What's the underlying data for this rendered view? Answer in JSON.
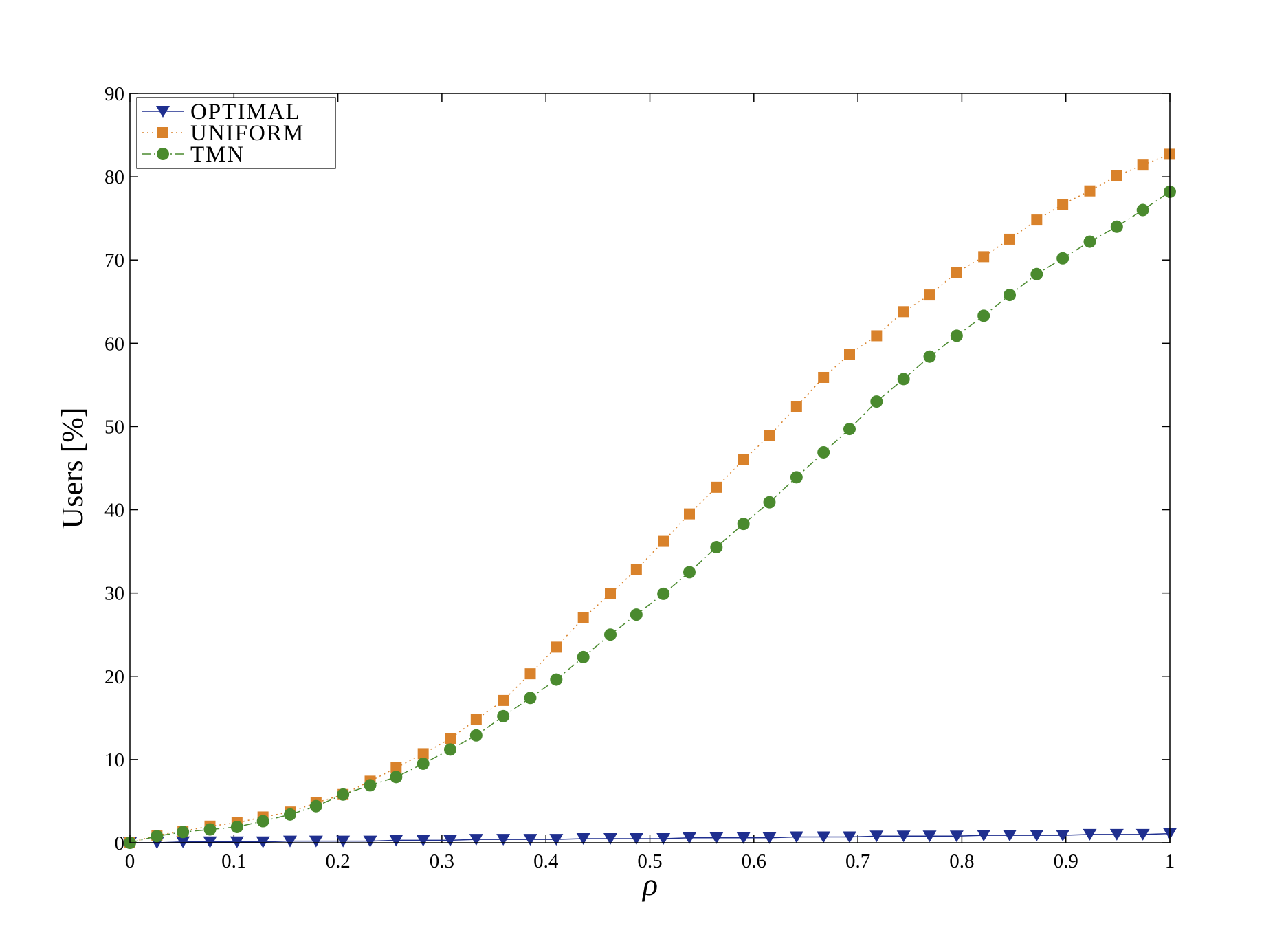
{
  "chart_data": {
    "type": "line",
    "x_label": "ρ",
    "y_label": "Users [%]",
    "x": [
      0,
      0.026,
      0.051,
      0.077,
      0.103,
      0.128,
      0.154,
      0.179,
      0.205,
      0.231,
      0.256,
      0.282,
      0.308,
      0.333,
      0.359,
      0.385,
      0.41,
      0.436,
      0.462,
      0.487,
      0.513,
      0.538,
      0.564,
      0.59,
      0.615,
      0.641,
      0.667,
      0.692,
      0.718,
      0.744,
      0.769,
      0.795,
      0.821,
      0.846,
      0.872,
      0.897,
      0.923,
      0.949,
      0.974,
      1
    ],
    "series": [
      {
        "name": "OPTIMAL",
        "color": "#1f2f8f",
        "marker": "triangle-down",
        "linestyle": "solid",
        "values": [
          0,
          0,
          0.1,
          0.1,
          0.1,
          0.1,
          0.2,
          0.2,
          0.2,
          0.2,
          0.3,
          0.3,
          0.3,
          0.4,
          0.4,
          0.4,
          0.4,
          0.5,
          0.5,
          0.5,
          0.5,
          0.6,
          0.6,
          0.6,
          0.6,
          0.7,
          0.7,
          0.7,
          0.8,
          0.8,
          0.8,
          0.8,
          0.9,
          0.9,
          0.9,
          0.9,
          1.0,
          1.0,
          1.0,
          1.1
        ]
      },
      {
        "name": "UNIFORM",
        "color": "#d9822b",
        "marker": "square",
        "linestyle": "dotted",
        "values": [
          0,
          0.9,
          1.4,
          2.0,
          2.4,
          3.1,
          3.7,
          4.8,
          5.8,
          7.4,
          9.0,
          10.7,
          12.5,
          14.8,
          17.1,
          20.3,
          23.5,
          27.0,
          29.9,
          32.8,
          36.2,
          39.5,
          42.7,
          46.0,
          48.9,
          52.4,
          55.9,
          58.7,
          60.9,
          63.8,
          65.8,
          68.5,
          70.4,
          72.5,
          74.8,
          76.7,
          78.3,
          80.1,
          81.4,
          82.7
        ]
      },
      {
        "name": "TMN",
        "color": "#4a8a2e",
        "marker": "circle",
        "linestyle": "dashdot",
        "values": [
          0,
          0.8,
          1.3,
          1.6,
          1.9,
          2.6,
          3.4,
          4.4,
          5.8,
          6.9,
          7.9,
          9.5,
          11.2,
          12.9,
          15.2,
          17.4,
          19.6,
          22.3,
          25.0,
          27.4,
          29.9,
          32.5,
          35.5,
          38.3,
          40.9,
          43.9,
          46.9,
          49.7,
          53.0,
          55.7,
          58.4,
          60.9,
          63.3,
          65.8,
          68.3,
          70.2,
          72.2,
          74.0,
          76.0,
          78.2
        ]
      }
    ],
    "xlim": [
      0,
      1
    ],
    "xticks": [
      0,
      0.1,
      0.2,
      0.3,
      0.4,
      0.5,
      0.6,
      0.7,
      0.8,
      0.9,
      1
    ],
    "ylim": [
      0,
      90
    ],
    "yticks": [
      0,
      10,
      20,
      30,
      40,
      50,
      60,
      70,
      80,
      90
    ],
    "grid": false,
    "legend": "upper left"
  }
}
